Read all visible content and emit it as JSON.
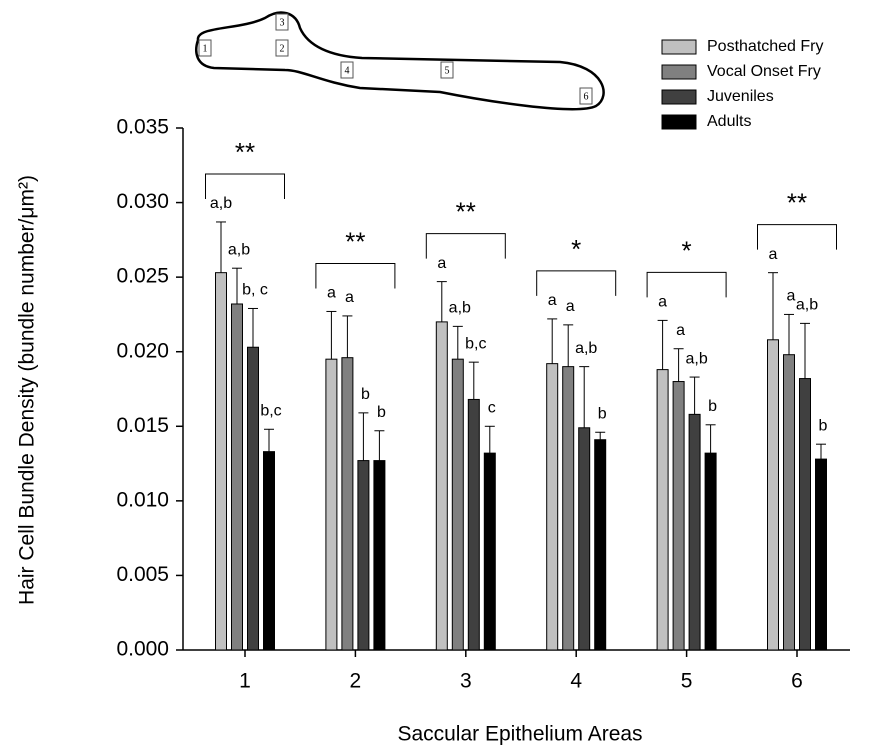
{
  "chart_data": {
    "type": "bar",
    "ylabel": "Hair Cell Bundle Density (bundle number/μm²)",
    "xlabel": "Saccular Epithelium Areas",
    "categories": [
      "1",
      "2",
      "3",
      "4",
      "5",
      "6"
    ],
    "series": [
      {
        "name": "Posthatched Fry",
        "color": "#c0c0c0",
        "values": [
          0.0253,
          0.0195,
          0.022,
          0.0192,
          0.0188,
          0.0208
        ],
        "errors": [
          0.0034,
          0.0032,
          0.0027,
          0.003,
          0.0033,
          0.0045
        ],
        "letters": [
          "a,b",
          "a",
          "a",
          "a",
          "a",
          "a"
        ]
      },
      {
        "name": "Vocal Onset Fry",
        "color": "#808080",
        "values": [
          0.0232,
          0.0196,
          0.0195,
          0.019,
          0.018,
          0.0198
        ],
        "errors": [
          0.0024,
          0.0028,
          0.0022,
          0.0028,
          0.0022,
          0.0027
        ],
        "letters": [
          "a,b",
          "a",
          "a,b",
          "a",
          "a",
          "a"
        ]
      },
      {
        "name": "Juveniles",
        "color": "#404040",
        "values": [
          0.0203,
          0.0127,
          0.0168,
          0.0149,
          0.0158,
          0.0182
        ],
        "errors": [
          0.0026,
          0.0032,
          0.0025,
          0.0041,
          0.0025,
          0.0037
        ],
        "letters": [
          "b, c",
          "b",
          "b,c",
          "a,b",
          "a,b",
          "a,b"
        ]
      },
      {
        "name": "Adults",
        "color": "#000000",
        "values": [
          0.0133,
          0.0127,
          0.0132,
          0.0141,
          0.0132,
          0.0128
        ],
        "errors": [
          0.0015,
          0.002,
          0.0018,
          0.0005,
          0.0019,
          0.001
        ],
        "letters": [
          "b,c",
          "b",
          "c",
          "b",
          "b",
          "b"
        ]
      }
    ],
    "significance": [
      "**",
      "**",
      "**",
      "*",
      "*",
      "**"
    ],
    "inset_labels": [
      "1",
      "2",
      "3",
      "4",
      "5",
      "6"
    ],
    "ylim": [
      0,
      0.035
    ],
    "yticks": [
      {
        "value": 0,
        "label": "0.000"
      },
      0.005,
      {
        "value": 0.01,
        "label": "0.010"
      },
      0.015,
      {
        "value": 0.02,
        "label": "0.020"
      },
      0.025,
      {
        "value": 0.03,
        "label": "0.030"
      },
      0.035
    ],
    "legend": "upper right",
    "grid": false
  }
}
